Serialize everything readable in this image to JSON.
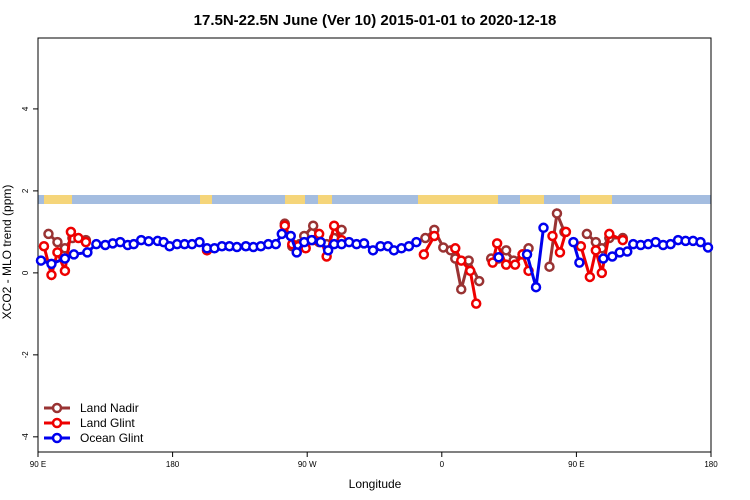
{
  "chart_data": {
    "type": "line",
    "title": "17.5N-22.5N June (Ver 10)   2015-01-01 to 2020-12-18",
    "x_label": "Longitude",
    "y_label": "XCO2 - MLO trend (ppm)",
    "xlim": [
      90,
      540
    ],
    "ylim": [
      -4.37,
      5.73
    ],
    "xticks": [
      {
        "value": 90,
        "label": "90 E"
      },
      180,
      {
        "value": 270,
        "label": "90 W"
      },
      {
        "value": 360,
        "label": "0"
      },
      {
        "value": 450,
        "label": "90 E"
      },
      {
        "value": 540,
        "label": "180"
      }
    ],
    "yticks": [
      -4,
      -2,
      0,
      2,
      4
    ],
    "legend": "bottom-left",
    "series": [
      {
        "name": "Land Nadir",
        "color": "#993333",
        "x": [
          97,
          103,
          108,
          113,
          122,
          null,
          255,
          260,
          265,
          268,
          274,
          278,
          283,
          288,
          293,
          null,
          349,
          355,
          361,
          366,
          369,
          373,
          378,
          385,
          null,
          393,
          398,
          403,
          408,
          414,
          418,
          null,
          432,
          437,
          442,
          null,
          457,
          463,
          467,
          472,
          481
        ],
        "values": [
          0.95,
          0.75,
          0.6,
          0.85,
          0.8,
          null,
          1.2,
          0.65,
          0.7,
          0.9,
          1.15,
          0.75,
          0.7,
          0.85,
          1.05,
          null,
          0.85,
          1.05,
          0.62,
          0.55,
          0.35,
          -0.4,
          0.3,
          -0.2,
          null,
          0.35,
          0.35,
          0.55,
          0.3,
          0.45,
          0.6,
          null,
          0.15,
          1.45,
          1.0,
          null,
          0.95,
          0.75,
          0.6,
          0.85,
          0.85
        ]
      },
      {
        "name": "Land Glint",
        "color": "#ee0000",
        "x": [
          94,
          99,
          103,
          108,
          112,
          117,
          122,
          null,
          203,
          null,
          255,
          260,
          264,
          269,
          274,
          278,
          283,
          288,
          293,
          null,
          348,
          355,
          null,
          369,
          373,
          379,
          383,
          null,
          394,
          397,
          403,
          409,
          414,
          418,
          null,
          434,
          439,
          443,
          null,
          453,
          459,
          463,
          467,
          472,
          481
        ],
        "values": [
          0.65,
          -0.05,
          0.5,
          0.05,
          1.0,
          0.85,
          0.75,
          null,
          0.55,
          null,
          1.15,
          0.7,
          0.65,
          0.6,
          0.8,
          0.95,
          0.4,
          1.15,
          0.8,
          null,
          0.45,
          0.9,
          null,
          0.6,
          0.3,
          0.05,
          -0.75,
          null,
          0.25,
          0.72,
          0.2,
          0.2,
          0.45,
          0.05,
          null,
          0.9,
          0.5,
          1.0,
          null,
          0.65,
          -0.1,
          0.55,
          0.0,
          0.95,
          0.8
        ]
      },
      {
        "name": "Ocean Glint",
        "color": "#0000ee",
        "x": [
          92,
          99,
          108,
          114,
          123,
          129,
          135,
          140,
          145,
          150,
          154,
          159,
          164,
          170,
          174,
          178,
          183,
          188,
          193,
          198,
          203,
          208,
          213,
          218,
          223,
          229,
          234,
          239,
          244,
          249,
          253,
          259,
          263,
          268,
          273,
          279,
          284,
          288,
          293,
          298,
          303,
          308,
          314,
          319,
          324,
          328,
          333,
          338,
          343,
          null,
          398,
          null,
          417,
          423,
          428,
          null,
          448,
          452,
          null,
          468,
          474,
          479,
          484,
          488,
          493,
          498,
          503,
          508,
          513,
          518,
          523,
          528,
          533,
          538
        ],
        "values": [
          0.3,
          0.22,
          0.35,
          0.45,
          0.5,
          0.7,
          0.68,
          0.72,
          0.75,
          0.68,
          0.7,
          0.8,
          0.77,
          0.78,
          0.75,
          0.65,
          0.7,
          0.7,
          0.7,
          0.75,
          0.6,
          0.6,
          0.65,
          0.65,
          0.63,
          0.65,
          0.63,
          0.65,
          0.7,
          0.7,
          0.95,
          0.9,
          0.5,
          0.75,
          0.8,
          0.75,
          0.55,
          0.7,
          0.7,
          0.75,
          0.7,
          0.72,
          0.55,
          0.65,
          0.65,
          0.55,
          0.6,
          0.65,
          0.75,
          null,
          0.38,
          null,
          0.45,
          -0.35,
          1.1,
          null,
          0.75,
          0.25,
          null,
          0.35,
          0.4,
          0.5,
          0.52,
          0.7,
          0.68,
          0.7,
          0.75,
          0.68,
          0.7,
          0.8,
          0.78,
          0.78,
          0.75,
          0.62
        ]
      }
    ]
  }
}
